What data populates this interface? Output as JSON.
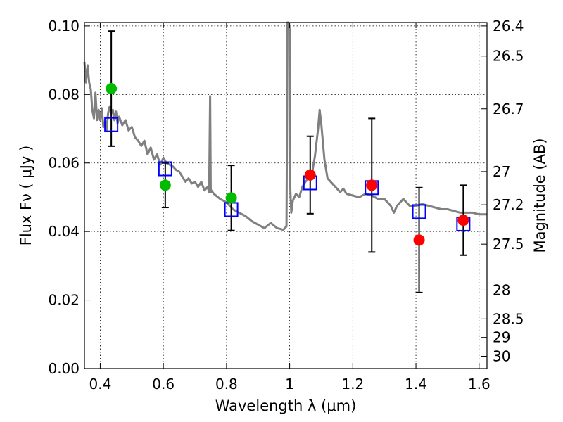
{
  "chart_data": {
    "type": "scatter",
    "title": "",
    "xlabel": "Wavelength  λ (μm)",
    "ylabel": "Flux  Fν  ( μJy )",
    "ylabel_right": "Magnitude (AB)",
    "xlim": [
      0.35,
      1.625
    ],
    "ylim": [
      0.0,
      0.101
    ],
    "grid": true,
    "x_ticks": [
      0.4,
      0.6,
      0.8,
      1.0,
      1.2,
      1.4,
      1.6
    ],
    "x_tick_labels": [
      "0.4",
      "0.6",
      "0.8",
      "1",
      "1.2",
      "1.4",
      "1.6"
    ],
    "y_ticks": [
      0.0,
      0.02,
      0.04,
      0.06,
      0.08,
      0.1
    ],
    "y_tick_labels": [
      "0.00",
      "0.02",
      "0.04",
      "0.06",
      "0.08",
      "0.10"
    ],
    "right_ticks": [
      {
        "label": "26.4",
        "flux": 0.1
      },
      {
        "label": "26.5",
        "flux": 0.0912
      },
      {
        "label": "26.7",
        "flux": 0.0758
      },
      {
        "label": "27",
        "flux": 0.0575
      },
      {
        "label": "27.2",
        "flux": 0.0478
      },
      {
        "label": "27.5",
        "flux": 0.0363
      },
      {
        "label": "28",
        "flux": 0.0229
      },
      {
        "label": "28.5",
        "flux": 0.0145
      },
      {
        "label": "29",
        "flux": 0.0091
      },
      {
        "label": "30",
        "flux": 0.0036
      }
    ],
    "series": [
      {
        "kind": "spectrum",
        "color": "#808080",
        "x": [
          0.35,
          0.355,
          0.36,
          0.365,
          0.37,
          0.375,
          0.38,
          0.385,
          0.39,
          0.395,
          0.4,
          0.405,
          0.41,
          0.415,
          0.42,
          0.425,
          0.43,
          0.435,
          0.44,
          0.445,
          0.45,
          0.455,
          0.46,
          0.47,
          0.48,
          0.49,
          0.5,
          0.51,
          0.52,
          0.53,
          0.54,
          0.55,
          0.56,
          0.57,
          0.58,
          0.59,
          0.6,
          0.61,
          0.62,
          0.63,
          0.64,
          0.65,
          0.66,
          0.67,
          0.68,
          0.69,
          0.7,
          0.71,
          0.72,
          0.73,
          0.74,
          0.745,
          0.748,
          0.75,
          0.752,
          0.76,
          0.78,
          0.8,
          0.82,
          0.84,
          0.86,
          0.88,
          0.9,
          0.92,
          0.94,
          0.96,
          0.98,
          0.99,
          0.993,
          0.996,
          1.0,
          1.002,
          1.005,
          1.01,
          1.02,
          1.03,
          1.04,
          1.05,
          1.06,
          1.07,
          1.08,
          1.09,
          1.095,
          1.1,
          1.11,
          1.12,
          1.13,
          1.14,
          1.15,
          1.16,
          1.17,
          1.18,
          1.2,
          1.22,
          1.24,
          1.26,
          1.28,
          1.3,
          1.32,
          1.33,
          1.34,
          1.36,
          1.38,
          1.4,
          1.42,
          1.44,
          1.46,
          1.48,
          1.5,
          1.52,
          1.54,
          1.56,
          1.58,
          1.6,
          1.625
        ],
        "y": [
          0.0895,
          0.0835,
          0.0885,
          0.0835,
          0.0815,
          0.0755,
          0.073,
          0.0805,
          0.0725,
          0.0755,
          0.0725,
          0.076,
          0.0705,
          0.072,
          0.0695,
          0.0745,
          0.0765,
          0.0745,
          0.0755,
          0.0725,
          0.075,
          0.0715,
          0.0735,
          0.071,
          0.0725,
          0.0695,
          0.0705,
          0.0675,
          0.0665,
          0.065,
          0.0665,
          0.0625,
          0.0645,
          0.061,
          0.0625,
          0.0595,
          0.0615,
          0.06,
          0.0595,
          0.059,
          0.058,
          0.0575,
          0.056,
          0.0545,
          0.0555,
          0.054,
          0.0545,
          0.053,
          0.0545,
          0.052,
          0.053,
          0.0515,
          0.0795,
          0.0515,
          0.052,
          0.051,
          0.0495,
          0.0485,
          0.0465,
          0.0455,
          0.0445,
          0.043,
          0.042,
          0.041,
          0.0425,
          0.041,
          0.0405,
          0.0415,
          0.101,
          0.101,
          0.099,
          0.0525,
          0.0455,
          0.049,
          0.051,
          0.05,
          0.053,
          0.0545,
          0.0555,
          0.0565,
          0.062,
          0.07,
          0.0755,
          0.0715,
          0.061,
          0.0555,
          0.0545,
          0.0535,
          0.0525,
          0.0515,
          0.0525,
          0.051,
          0.0505,
          0.05,
          0.051,
          0.0505,
          0.0495,
          0.0495,
          0.0475,
          0.0455,
          0.0475,
          0.0495,
          0.0475,
          0.0475,
          0.048,
          0.0475,
          0.047,
          0.0465,
          0.0465,
          0.046,
          0.0455,
          0.0455,
          0.0455,
          0.045,
          0.045
        ]
      },
      {
        "kind": "model",
        "marker": "open-square",
        "color": "#0000ff",
        "x": [
          0.435,
          0.606,
          0.815,
          1.065,
          1.26,
          1.41,
          1.55
        ],
        "y": [
          0.0712,
          0.0583,
          0.0464,
          0.0542,
          0.0528,
          0.0458,
          0.0422
        ]
      },
      {
        "kind": "observed-optical",
        "marker": "filled-circle",
        "color": "#00bb00",
        "x": [
          0.435,
          0.606,
          0.815
        ],
        "y": [
          0.0817,
          0.0535,
          0.0498
        ],
        "err": [
          0.0168,
          0.0065,
          0.0095
        ]
      },
      {
        "kind": "observed-nir",
        "marker": "filled-circle",
        "color": "#ff0000",
        "x": [
          1.065,
          1.26,
          1.41,
          1.55
        ],
        "y": [
          0.0565,
          0.0535,
          0.0375,
          0.0433
        ],
        "err": [
          0.0113,
          0.0195,
          0.0153,
          0.0102
        ]
      }
    ]
  }
}
